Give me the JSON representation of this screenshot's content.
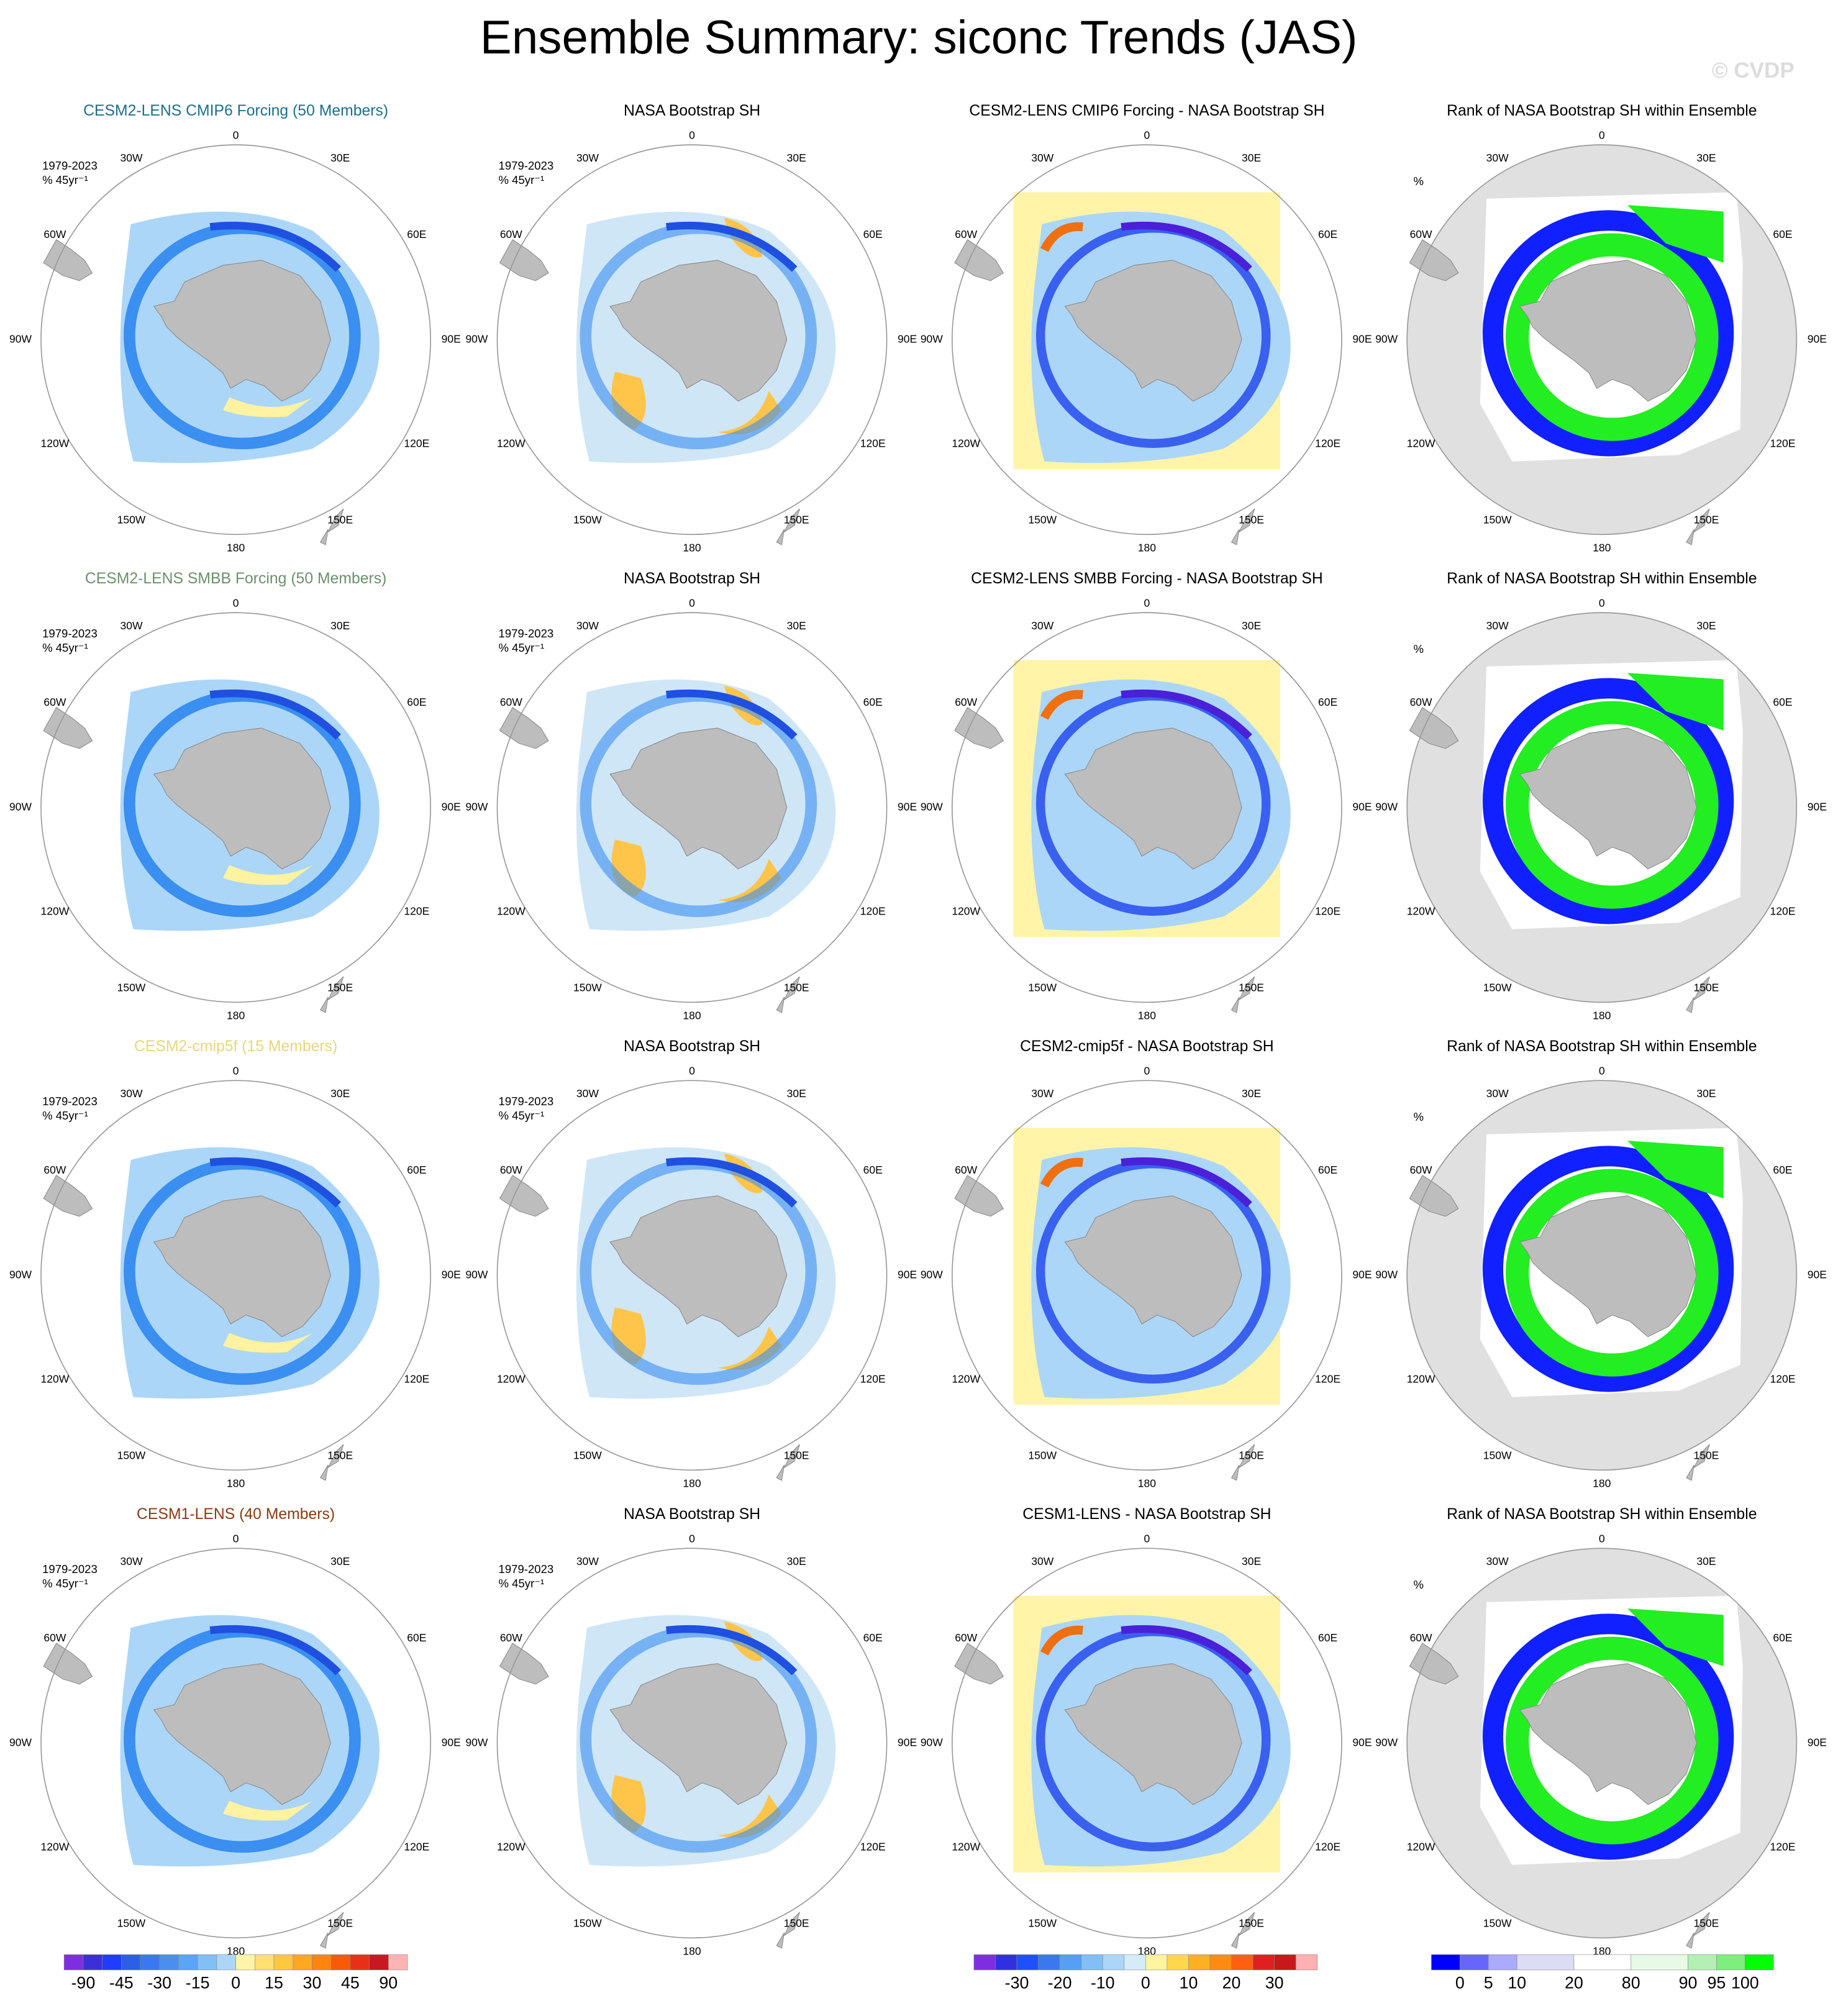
{
  "title": "Ensemble Summary: siconc Trends (JAS)",
  "watermark": "© CVDP",
  "longitude_labels": [
    "0",
    "30E",
    "60E",
    "90E",
    "120E",
    "150E",
    "180",
    "150W",
    "120W",
    "90W",
    "60W",
    "30W"
  ],
  "period": "1979-2023",
  "trend_units": "% 45yr⁻¹",
  "rank_units": "%",
  "rows": [
    {
      "panels": [
        {
          "title": "CESM2-LENS CMIP6 Forcing (50 Members)",
          "color": "#1d6f8c"
        },
        {
          "title": "NASA Bootstrap SH",
          "color": "#000000"
        },
        {
          "title": "CESM2-LENS CMIP6 Forcing - NASA Bootstrap SH",
          "color": "#000000"
        },
        {
          "title": "Rank of NASA Bootstrap SH within Ensemble",
          "color": "#000000"
        }
      ]
    },
    {
      "panels": [
        {
          "title": "CESM2-LENS SMBB Forcing (50 Members)",
          "color": "#6b916b"
        },
        {
          "title": "NASA Bootstrap SH",
          "color": "#000000"
        },
        {
          "title": "CESM2-LENS SMBB Forcing - NASA Bootstrap SH",
          "color": "#000000"
        },
        {
          "title": "Rank of NASA Bootstrap SH within Ensemble",
          "color": "#000000"
        }
      ]
    },
    {
      "panels": [
        {
          "title": "CESM2-cmip5f (15 Members)",
          "color": "#e6d67c"
        },
        {
          "title": "NASA Bootstrap SH",
          "color": "#000000"
        },
        {
          "title": "CESM2-cmip5f - NASA Bootstrap SH",
          "color": "#000000"
        },
        {
          "title": "Rank of NASA Bootstrap SH within Ensemble",
          "color": "#000000"
        }
      ]
    },
    {
      "panels": [
        {
          "title": "CESM1-LENS (40 Members)",
          "color": "#8b3a12"
        },
        {
          "title": "NASA Bootstrap SH",
          "color": "#000000"
        },
        {
          "title": "CESM1-LENS - NASA Bootstrap SH",
          "color": "#000000"
        },
        {
          "title": "Rank of NASA Bootstrap SH within Ensemble",
          "color": "#000000"
        }
      ]
    }
  ],
  "colorbars": [
    {
      "colors": [
        "#7f2de0",
        "#3c2fd8",
        "#1f3cff",
        "#2b5fe8",
        "#3a78f0",
        "#4a8ff0",
        "#5aa5f5",
        "#80c0f6",
        "#acd6f8",
        "#fff4a8",
        "#ffe070",
        "#ffc840",
        "#ffa820",
        "#ff8410",
        "#f85a08",
        "#e83018",
        "#c81820",
        "#ffb4b4"
      ],
      "labels": [
        "-90",
        "-45",
        "-30",
        "-15",
        "0",
        "15",
        "30",
        "45",
        "90"
      ]
    },
    {
      "colors": [
        "#7f2de0",
        "#3030e0",
        "#1f50ff",
        "#3a78f0",
        "#55a0f5",
        "#80c0f6",
        "#acd6f8",
        "#d4ecfa",
        "#fff4a0",
        "#ffd84a",
        "#ffb020",
        "#ff8c10",
        "#ff6010",
        "#e02020",
        "#c81818",
        "#ffb0b0"
      ],
      "labels": [
        "-30",
        "-20",
        "-10",
        "0",
        "10",
        "20",
        "30"
      ]
    },
    {
      "colors": [
        "#0000ff",
        "#6666ff",
        "#aaaaff",
        "#dcdcf5",
        "#ffffff",
        "#e6fae6",
        "#b4f0b4",
        "#7eee7e",
        "#00ff00"
      ],
      "labels": [
        "0",
        "5",
        "10",
        "20",
        "80",
        "90",
        "95",
        "100"
      ]
    }
  ]
}
